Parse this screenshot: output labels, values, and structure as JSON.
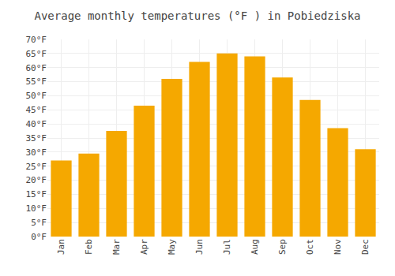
{
  "chart_data": {
    "type": "bar",
    "title": "Average monthly temperatures (°F ) in Pobiedziska",
    "categories": [
      "Jan",
      "Feb",
      "Mar",
      "Apr",
      "May",
      "Jun",
      "Jul",
      "Aug",
      "Sep",
      "Oct",
      "Nov",
      "Dec"
    ],
    "values": [
      27,
      29.5,
      37.5,
      46.5,
      56,
      62,
      65,
      64,
      56.5,
      48.5,
      38.5,
      31
    ],
    "color": "#F5A800",
    "ylim": [
      0,
      70
    ],
    "yticks": [
      {
        "value": 0,
        "label": "0°F"
      },
      {
        "value": 5,
        "label": "5°F"
      },
      {
        "value": 10,
        "label": "10°F"
      },
      {
        "value": 15,
        "label": "15°F"
      },
      {
        "value": 20,
        "label": "20°F"
      },
      {
        "value": 25,
        "label": "25°F"
      },
      {
        "value": 30,
        "label": "30°F"
      },
      {
        "value": 35,
        "label": "35°F"
      },
      {
        "value": 40,
        "label": "40°F"
      },
      {
        "value": 45,
        "label": "45°F"
      },
      {
        "value": 50,
        "label": "50°F"
      },
      {
        "value": 55,
        "label": "55°F"
      },
      {
        "value": 60,
        "label": "60°F"
      },
      {
        "value": 65,
        "label": "65°F"
      },
      {
        "value": 70,
        "label": "70°F"
      }
    ],
    "grid": true
  }
}
